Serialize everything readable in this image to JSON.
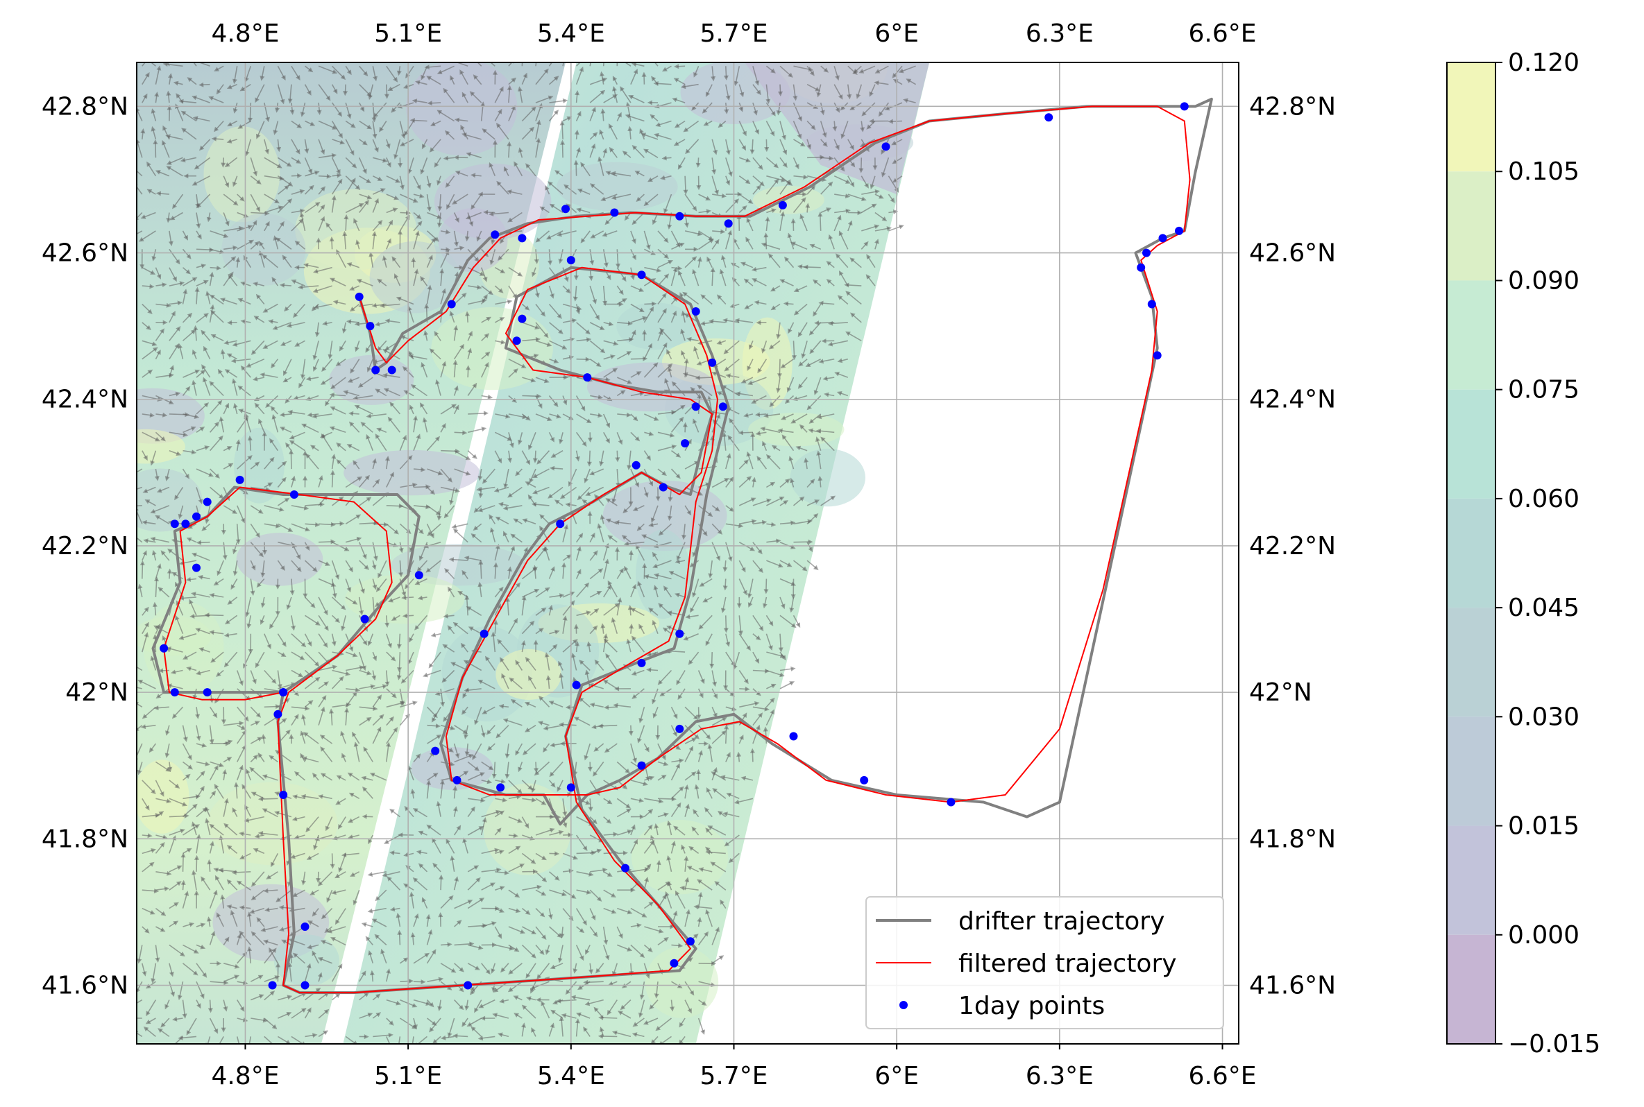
{
  "map": {
    "type": "map-quiver-trajectory",
    "lon_range": [
      4.6,
      6.63
    ],
    "lat_range": [
      41.52,
      42.86
    ],
    "lon_ticks": [
      {
        "value": 4.8,
        "label": "4.8°E"
      },
      {
        "value": 5.1,
        "label": "5.1°E"
      },
      {
        "value": 5.4,
        "label": "5.4°E"
      },
      {
        "value": 5.7,
        "label": "5.7°E"
      },
      {
        "value": 6.0,
        "label": "6°E"
      },
      {
        "value": 6.3,
        "label": "6.3°E"
      },
      {
        "value": 6.6,
        "label": "6.6°E"
      }
    ],
    "lat_ticks": [
      {
        "value": 41.6,
        "label": "41.6°N"
      },
      {
        "value": 41.8,
        "label": "41.8°N"
      },
      {
        "value": 42.0,
        "label": "42°N"
      },
      {
        "value": 42.2,
        "label": "42.2°N"
      },
      {
        "value": 42.4,
        "label": "42.4°N"
      },
      {
        "value": 42.6,
        "label": "42.6°N"
      },
      {
        "value": 42.8,
        "label": "42.8°N"
      }
    ],
    "grid": true,
    "swaths": [
      [
        [
          4.6,
          42.86
        ],
        [
          5.39,
          42.86
        ],
        [
          4.94,
          41.52
        ],
        [
          4.6,
          41.52
        ]
      ],
      [
        [
          5.41,
          42.86
        ],
        [
          6.06,
          42.86
        ],
        [
          5.63,
          41.52
        ],
        [
          4.98,
          41.52
        ]
      ]
    ],
    "colors": {
      "drifter": "#808080",
      "filtered": "#ff0000",
      "points": "#0000ff",
      "arrows": "#555555",
      "grid": "#b0b0b0"
    }
  },
  "colorbar": {
    "ticks": [
      "0.120",
      "0.105",
      "0.090",
      "0.075",
      "0.060",
      "0.045",
      "0.030",
      "0.015",
      "0.000",
      "−0.015"
    ],
    "values": [
      0.12,
      0.105,
      0.09,
      0.075,
      0.06,
      0.045,
      0.03,
      0.015,
      0.0,
      -0.015
    ],
    "band_colors": [
      "#f1f6b9",
      "#dbefc6",
      "#c6ebd3",
      "#b8e3d7",
      "#b6d8d6",
      "#bad1d5",
      "#bdcbd8",
      "#c2c3da",
      "#c6b5d3"
    ]
  },
  "legend": {
    "position": "lower-right",
    "items": [
      {
        "label": "drifter trajectory"
      },
      {
        "label": "filtered trajectory"
      },
      {
        "label": "1day points"
      }
    ]
  },
  "trajectory": [
    [
      5.01,
      42.54
    ],
    [
      5.03,
      42.49
    ],
    [
      5.04,
      42.44
    ],
    [
      5.06,
      42.45
    ],
    [
      5.09,
      42.49
    ],
    [
      5.16,
      42.52
    ],
    [
      5.21,
      42.59
    ],
    [
      5.25,
      42.62
    ],
    [
      5.32,
      42.64
    ],
    [
      5.41,
      42.65
    ],
    [
      5.51,
      42.655
    ],
    [
      5.63,
      42.65
    ],
    [
      5.73,
      42.65
    ],
    [
      5.84,
      42.69
    ],
    [
      5.96,
      42.75
    ],
    [
      6.06,
      42.78
    ],
    [
      6.2,
      42.79
    ],
    [
      6.35,
      42.8
    ],
    [
      6.45,
      42.8
    ],
    [
      6.55,
      42.8
    ],
    [
      6.58,
      42.81
    ],
    [
      6.55,
      42.71
    ],
    [
      6.53,
      42.63
    ],
    [
      6.49,
      42.62
    ],
    [
      6.44,
      42.6
    ],
    [
      6.47,
      42.54
    ],
    [
      6.48,
      42.47
    ],
    [
      6.46,
      42.4
    ],
    [
      6.3,
      41.85
    ],
    [
      6.24,
      41.83
    ],
    [
      6.16,
      41.85
    ],
    [
      6.0,
      41.86
    ],
    [
      5.88,
      41.88
    ],
    [
      5.77,
      41.93
    ],
    [
      5.7,
      41.97
    ],
    [
      5.63,
      41.96
    ],
    [
      5.56,
      41.91
    ],
    [
      5.49,
      41.88
    ],
    [
      5.43,
      41.86
    ],
    [
      5.38,
      41.82
    ],
    [
      5.35,
      41.86
    ],
    [
      5.28,
      41.86
    ],
    [
      5.18,
      41.88
    ],
    [
      5.16,
      41.93
    ],
    [
      5.2,
      42.02
    ],
    [
      5.25,
      42.1
    ],
    [
      5.31,
      42.18
    ],
    [
      5.36,
      42.23
    ],
    [
      5.44,
      42.26
    ],
    [
      5.53,
      42.3
    ],
    [
      5.58,
      42.28
    ],
    [
      5.62,
      42.27
    ],
    [
      5.64,
      42.33
    ],
    [
      5.66,
      42.38
    ],
    [
      5.64,
      42.41
    ],
    [
      5.56,
      42.41
    ],
    [
      5.48,
      42.42
    ],
    [
      5.38,
      42.44
    ],
    [
      5.28,
      42.47
    ],
    [
      5.3,
      42.54
    ],
    [
      5.4,
      42.58
    ],
    [
      5.53,
      42.57
    ],
    [
      5.62,
      42.53
    ],
    [
      5.66,
      42.46
    ],
    [
      5.69,
      42.39
    ],
    [
      5.67,
      42.33
    ],
    [
      5.65,
      42.27
    ],
    [
      5.62,
      42.14
    ],
    [
      5.59,
      42.06
    ],
    [
      5.52,
      42.04
    ],
    [
      5.42,
      42.01
    ],
    [
      5.39,
      41.94
    ],
    [
      5.42,
      41.84
    ],
    [
      5.49,
      41.77
    ],
    [
      5.56,
      41.71
    ],
    [
      5.63,
      41.65
    ],
    [
      5.6,
      41.62
    ],
    [
      5.4,
      41.61
    ],
    [
      5.2,
      41.6
    ],
    [
      5.0,
      41.59
    ],
    [
      4.9,
      41.59
    ],
    [
      4.87,
      41.6
    ],
    [
      4.89,
      41.67
    ],
    [
      4.88,
      41.8
    ],
    [
      4.86,
      41.96
    ],
    [
      4.87,
      42.0
    ],
    [
      4.97,
      42.05
    ],
    [
      5.05,
      42.12
    ],
    [
      5.1,
      42.16
    ],
    [
      5.12,
      42.24
    ],
    [
      5.08,
      42.27
    ],
    [
      4.98,
      42.27
    ],
    [
      4.87,
      42.27
    ],
    [
      4.78,
      42.28
    ],
    [
      4.73,
      42.24
    ],
    [
      4.67,
      42.22
    ],
    [
      4.68,
      42.15
    ],
    [
      4.63,
      42.06
    ],
    [
      4.65,
      42.0
    ],
    [
      4.72,
      42.0
    ],
    [
      4.8,
      42.0
    ],
    [
      4.87,
      42.0
    ]
  ],
  "filtered": [
    [
      5.01,
      42.54
    ],
    [
      5.04,
      42.47
    ],
    [
      5.06,
      42.45
    ],
    [
      5.1,
      42.48
    ],
    [
      5.17,
      42.52
    ],
    [
      5.22,
      42.58
    ],
    [
      5.27,
      42.62
    ],
    [
      5.34,
      42.645
    ],
    [
      5.43,
      42.65
    ],
    [
      5.52,
      42.655
    ],
    [
      5.63,
      42.65
    ],
    [
      5.72,
      42.65
    ],
    [
      5.83,
      42.69
    ],
    [
      5.95,
      42.75
    ],
    [
      6.06,
      42.78
    ],
    [
      6.2,
      42.79
    ],
    [
      6.36,
      42.8
    ],
    [
      6.48,
      42.8
    ],
    [
      6.53,
      42.78
    ],
    [
      6.54,
      42.7
    ],
    [
      6.53,
      42.63
    ],
    [
      6.48,
      42.61
    ],
    [
      6.45,
      42.59
    ],
    [
      6.48,
      42.52
    ],
    [
      6.47,
      42.44
    ],
    [
      6.38,
      42.14
    ],
    [
      6.3,
      41.95
    ],
    [
      6.2,
      41.86
    ],
    [
      6.1,
      41.85
    ],
    [
      5.98,
      41.86
    ],
    [
      5.87,
      41.88
    ],
    [
      5.78,
      41.93
    ],
    [
      5.71,
      41.96
    ],
    [
      5.64,
      41.95
    ],
    [
      5.56,
      41.91
    ],
    [
      5.49,
      41.87
    ],
    [
      5.43,
      41.86
    ],
    [
      5.35,
      41.86
    ],
    [
      5.25,
      41.86
    ],
    [
      5.18,
      41.88
    ],
    [
      5.17,
      41.94
    ],
    [
      5.2,
      42.02
    ],
    [
      5.26,
      42.1
    ],
    [
      5.32,
      42.18
    ],
    [
      5.38,
      42.23
    ],
    [
      5.46,
      42.27
    ],
    [
      5.53,
      42.3
    ],
    [
      5.6,
      42.27
    ],
    [
      5.64,
      42.3
    ],
    [
      5.66,
      42.38
    ],
    [
      5.62,
      42.4
    ],
    [
      5.53,
      42.41
    ],
    [
      5.43,
      42.43
    ],
    [
      5.33,
      42.44
    ],
    [
      5.28,
      42.49
    ],
    [
      5.32,
      42.55
    ],
    [
      5.42,
      42.58
    ],
    [
      5.53,
      42.57
    ],
    [
      5.61,
      42.53
    ],
    [
      5.65,
      42.46
    ],
    [
      5.67,
      42.4
    ],
    [
      5.66,
      42.33
    ],
    [
      5.63,
      42.26
    ],
    [
      5.61,
      42.13
    ],
    [
      5.58,
      42.07
    ],
    [
      5.51,
      42.04
    ],
    [
      5.42,
      42.0
    ],
    [
      5.39,
      41.94
    ],
    [
      5.41,
      41.85
    ],
    [
      5.48,
      41.77
    ],
    [
      5.56,
      41.71
    ],
    [
      5.62,
      41.65
    ],
    [
      5.58,
      41.62
    ],
    [
      5.4,
      41.61
    ],
    [
      5.2,
      41.6
    ],
    [
      5.0,
      41.59
    ],
    [
      4.9,
      41.59
    ],
    [
      4.87,
      41.6
    ],
    [
      4.88,
      41.67
    ],
    [
      4.87,
      41.8
    ],
    [
      4.86,
      41.96
    ],
    [
      4.88,
      42.0
    ],
    [
      4.97,
      42.05
    ],
    [
      5.04,
      42.1
    ],
    [
      5.07,
      42.15
    ],
    [
      5.06,
      42.22
    ],
    [
      5.0,
      42.26
    ],
    [
      4.9,
      42.27
    ],
    [
      4.79,
      42.28
    ],
    [
      4.73,
      42.24
    ],
    [
      4.68,
      42.22
    ],
    [
      4.69,
      42.15
    ],
    [
      4.65,
      42.06
    ],
    [
      4.66,
      42.0
    ],
    [
      4.72,
      41.99
    ],
    [
      4.8,
      41.99
    ],
    [
      4.87,
      42.0
    ]
  ],
  "day_points": [
    [
      5.01,
      42.54
    ],
    [
      5.03,
      42.5
    ],
    [
      5.04,
      42.44
    ],
    [
      5.07,
      42.44
    ],
    [
      5.18,
      42.53
    ],
    [
      5.26,
      42.625
    ],
    [
      5.31,
      42.62
    ],
    [
      5.39,
      42.66
    ],
    [
      5.48,
      42.655
    ],
    [
      5.6,
      42.65
    ],
    [
      5.69,
      42.64
    ],
    [
      5.79,
      42.665
    ],
    [
      5.98,
      42.745
    ],
    [
      6.28,
      42.785
    ],
    [
      6.53,
      42.8
    ],
    [
      6.52,
      42.63
    ],
    [
      6.49,
      42.62
    ],
    [
      6.46,
      42.6
    ],
    [
      6.45,
      42.58
    ],
    [
      6.47,
      42.53
    ],
    [
      6.48,
      42.46
    ],
    [
      6.1,
      41.85
    ],
    [
      5.94,
      41.88
    ],
    [
      5.81,
      41.94
    ],
    [
      5.6,
      41.95
    ],
    [
      5.53,
      41.9
    ],
    [
      5.4,
      41.87
    ],
    [
      5.27,
      41.87
    ],
    [
      5.19,
      41.88
    ],
    [
      5.15,
      41.92
    ],
    [
      5.24,
      42.08
    ],
    [
      5.38,
      42.23
    ],
    [
      5.52,
      42.31
    ],
    [
      5.57,
      42.28
    ],
    [
      5.61,
      42.34
    ],
    [
      5.63,
      42.39
    ],
    [
      5.68,
      42.39
    ],
    [
      5.66,
      42.45
    ],
    [
      5.63,
      42.52
    ],
    [
      5.53,
      42.57
    ],
    [
      5.4,
      42.59
    ],
    [
      5.31,
      42.51
    ],
    [
      5.3,
      42.48
    ],
    [
      5.43,
      42.43
    ],
    [
      5.6,
      42.08
    ],
    [
      5.53,
      42.04
    ],
    [
      5.41,
      42.01
    ],
    [
      5.5,
      41.76
    ],
    [
      5.62,
      41.66
    ],
    [
      5.59,
      41.63
    ],
    [
      5.21,
      41.6
    ],
    [
      4.91,
      41.6
    ],
    [
      4.85,
      41.6
    ],
    [
      4.91,
      41.68
    ],
    [
      4.87,
      41.86
    ],
    [
      4.86,
      41.97
    ],
    [
      4.87,
      42.0
    ],
    [
      5.02,
      42.1
    ],
    [
      5.12,
      42.16
    ],
    [
      4.89,
      42.27
    ],
    [
      4.79,
      42.29
    ],
    [
      4.73,
      42.26
    ],
    [
      4.71,
      42.24
    ],
    [
      4.69,
      42.23
    ],
    [
      4.67,
      42.23
    ],
    [
      4.71,
      42.17
    ],
    [
      4.65,
      42.06
    ],
    [
      4.67,
      42.0
    ],
    [
      4.73,
      42.0
    ],
    [
      4.87,
      42.0
    ]
  ]
}
